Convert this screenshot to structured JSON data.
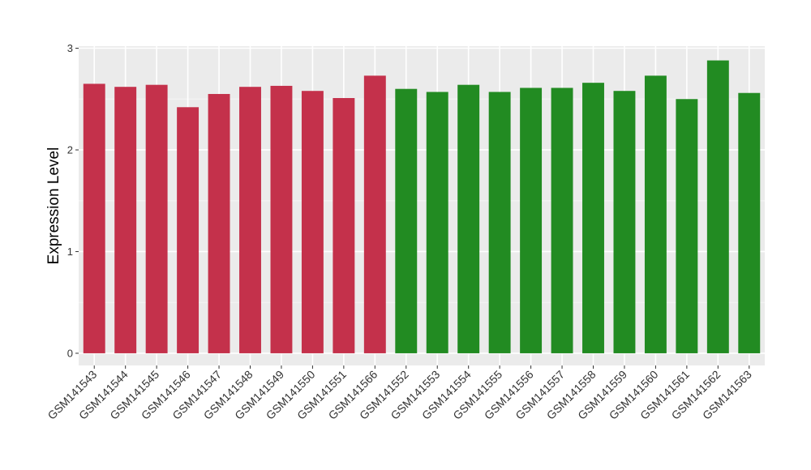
{
  "chart_data": {
    "type": "bar",
    "title": "",
    "xlabel": "",
    "ylabel": "Expression Level",
    "ylim": [
      -0.12,
      3.02
    ],
    "yticks": [
      0,
      1,
      2,
      3
    ],
    "grid": true,
    "legend": "none",
    "categories": [
      "GSM141543",
      "GSM141544",
      "GSM141545",
      "GSM141546",
      "GSM141547",
      "GSM141548",
      "GSM141549",
      "GSM141550",
      "GSM141551",
      "GSM141566",
      "GSM141552",
      "GSM141553",
      "GSM141554",
      "GSM141555",
      "GSM141556",
      "GSM141557",
      "GSM141558",
      "GSM141559",
      "GSM141560",
      "GSM141561",
      "GSM141562",
      "GSM141563"
    ],
    "values": [
      2.65,
      2.62,
      2.64,
      2.42,
      2.55,
      2.62,
      2.63,
      2.58,
      2.51,
      2.73,
      2.6,
      2.57,
      2.64,
      2.57,
      2.61,
      2.61,
      2.66,
      2.58,
      2.73,
      2.5,
      2.88,
      2.56
    ],
    "groups": [
      "red",
      "red",
      "red",
      "red",
      "red",
      "red",
      "red",
      "red",
      "red",
      "red",
      "green",
      "green",
      "green",
      "green",
      "green",
      "green",
      "green",
      "green",
      "green",
      "green",
      "green",
      "green"
    ],
    "colors": {
      "red": "#c4314b",
      "green": "#228b22",
      "panel": "#ebebeb",
      "grid_major": "#ffffff",
      "grid_minor": "#f5f5f5"
    }
  }
}
